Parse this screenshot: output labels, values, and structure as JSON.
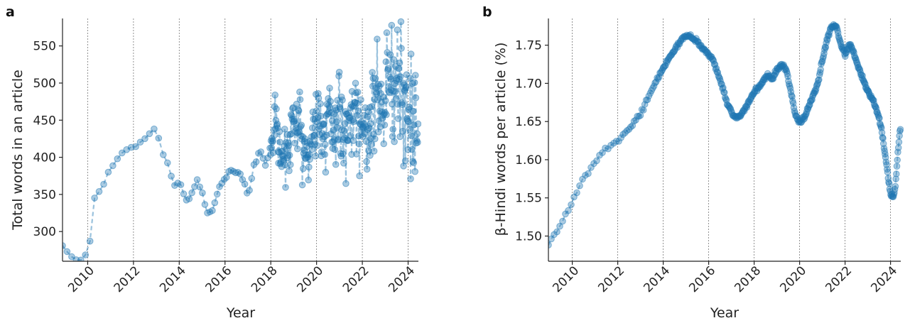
{
  "chart_data": [
    {
      "panel_label": "a",
      "type": "line",
      "marker": "circle",
      "line_style": "dashed",
      "color": "#1f77b4",
      "xlabel": "Year",
      "ylabel": "Total words in an article",
      "xlim": [
        2008.9,
        2024.45
      ],
      "ylim": [
        260,
        587
      ],
      "xticks": [
        2010,
        2012,
        2014,
        2016,
        2018,
        2020,
        2022,
        2024
      ],
      "xtick_labels": [
        "2010",
        "2012",
        "2014",
        "2016",
        "2018",
        "2020",
        "2022",
        "2024"
      ],
      "yticks": [
        300,
        350,
        400,
        450,
        500,
        550
      ],
      "ytick_labels": [
        "300",
        "350",
        "400",
        "450",
        "500",
        "550"
      ],
      "vertical_grid": true,
      "anchors": [
        [
          2008.9,
          281
        ],
        [
          2009.25,
          267
        ],
        [
          2009.5,
          262
        ],
        [
          2009.75,
          261
        ],
        [
          2009.85,
          265
        ],
        [
          2010.0,
          277
        ],
        [
          2010.15,
          292
        ],
        [
          2010.3,
          345
        ],
        [
          2010.6,
          358
        ],
        [
          2010.9,
          379
        ],
        [
          2011.2,
          393
        ],
        [
          2011.55,
          408
        ],
        [
          2012.0,
          415
        ],
        [
          2012.4,
          420
        ],
        [
          2012.7,
          431
        ],
        [
          2012.95,
          437
        ],
        [
          2013.15,
          418
        ],
        [
          2013.5,
          392
        ],
        [
          2013.8,
          362
        ],
        [
          2014.0,
          370
        ],
        [
          2014.3,
          340
        ],
        [
          2014.55,
          352
        ],
        [
          2014.8,
          372
        ],
        [
          2015.05,
          345
        ],
        [
          2015.3,
          320
        ],
        [
          2015.5,
          330
        ],
        [
          2015.75,
          360
        ],
        [
          2016.0,
          372
        ],
        [
          2016.3,
          385
        ],
        [
          2016.6,
          378
        ],
        [
          2016.85,
          365
        ],
        [
          2017.05,
          352
        ],
        [
          2017.3,
          395
        ],
        [
          2017.55,
          410
        ],
        [
          2017.8,
          385
        ],
        [
          2018.0,
          420
        ],
        [
          2018.2,
          450
        ],
        [
          2018.45,
          398
        ],
        [
          2018.7,
          410
        ],
        [
          2018.95,
          455
        ],
        [
          2019.2,
          440
        ],
        [
          2019.45,
          410
        ],
        [
          2019.7,
          420
        ],
        [
          2019.95,
          440
        ],
        [
          2020.1,
          472
        ],
        [
          2020.3,
          430
        ],
        [
          2020.55,
          455
        ],
        [
          2020.8,
          440
        ],
        [
          2021.0,
          452
        ],
        [
          2021.2,
          430
        ],
        [
          2021.45,
          455
        ],
        [
          2021.7,
          470
        ],
        [
          2021.9,
          440
        ],
        [
          2022.1,
          435
        ],
        [
          2022.3,
          450
        ],
        [
          2022.5,
          475
        ],
        [
          2022.75,
          470
        ],
        [
          2022.95,
          468
        ],
        [
          2023.1,
          510
        ],
        [
          2023.35,
          490
        ],
        [
          2023.6,
          500
        ],
        [
          2023.85,
          470
        ],
        [
          2024.1,
          480
        ],
        [
          2024.3,
          440
        ],
        [
          2024.45,
          430
        ]
      ],
      "noise": [
        [
          2008.9,
          0
        ],
        [
          2017.8,
          4
        ],
        [
          2018.0,
          15
        ],
        [
          2019.0,
          22
        ],
        [
          2020.0,
          25
        ],
        [
          2021.0,
          30
        ],
        [
          2022.0,
          32
        ],
        [
          2023.0,
          36
        ],
        [
          2024.0,
          42
        ],
        [
          2024.45,
          42
        ]
      ],
      "point_density": [
        [
          2008.9,
          5
        ],
        [
          2013.2,
          5
        ],
        [
          2014.0,
          8
        ],
        [
          2016.0,
          10
        ],
        [
          2017.9,
          10
        ],
        [
          2018.0,
          52
        ],
        [
          2024.45,
          52
        ]
      ],
      "seed": 7
    },
    {
      "panel_label": "b",
      "type": "line",
      "marker": "circle",
      "line_style": "dashed",
      "color": "#1f77b4",
      "xlabel": "Year",
      "ylabel": "β-Hindi words per article (%)",
      "xlim": [
        2008.95,
        2024.45
      ],
      "ylim": [
        1.467,
        1.785
      ],
      "xticks": [
        2010,
        2012,
        2014,
        2016,
        2018,
        2020,
        2022,
        2024
      ],
      "xtick_labels": [
        "2010",
        "2012",
        "2014",
        "2016",
        "2018",
        "2020",
        "2022",
        "2024"
      ],
      "yticks": [
        1.5,
        1.55,
        1.6,
        1.65,
        1.7,
        1.75
      ],
      "ytick_labels": [
        "1.50",
        "1.55",
        "1.60",
        "1.65",
        "1.70",
        "1.75"
      ],
      "vertical_grid": true,
      "anchors": [
        [
          2008.95,
          1.49
        ],
        [
          2009.5,
          1.515
        ],
        [
          2010.0,
          1.545
        ],
        [
          2010.5,
          1.575
        ],
        [
          2011.0,
          1.598
        ],
        [
          2011.5,
          1.615
        ],
        [
          2012.0,
          1.625
        ],
        [
          2012.5,
          1.64
        ],
        [
          2013.0,
          1.66
        ],
        [
          2013.5,
          1.692
        ],
        [
          2014.0,
          1.72
        ],
        [
          2014.5,
          1.745
        ],
        [
          2014.8,
          1.757
        ],
        [
          2015.0,
          1.762
        ],
        [
          2015.2,
          1.762
        ],
        [
          2015.5,
          1.755
        ],
        [
          2015.8,
          1.743
        ],
        [
          2016.2,
          1.73
        ],
        [
          2016.5,
          1.705
        ],
        [
          2016.8,
          1.675
        ],
        [
          2017.1,
          1.655
        ],
        [
          2017.4,
          1.658
        ],
        [
          2017.7,
          1.672
        ],
        [
          2018.0,
          1.688
        ],
        [
          2018.3,
          1.7
        ],
        [
          2018.6,
          1.712
        ],
        [
          2018.8,
          1.705
        ],
        [
          2019.0,
          1.718
        ],
        [
          2019.2,
          1.725
        ],
        [
          2019.4,
          1.718
        ],
        [
          2019.6,
          1.69
        ],
        [
          2019.8,
          1.66
        ],
        [
          2020.0,
          1.648
        ],
        [
          2020.2,
          1.655
        ],
        [
          2020.4,
          1.67
        ],
        [
          2020.6,
          1.685
        ],
        [
          2020.8,
          1.7
        ],
        [
          2021.0,
          1.73
        ],
        [
          2021.2,
          1.755
        ],
        [
          2021.4,
          1.775
        ],
        [
          2021.6,
          1.775
        ],
        [
          2021.8,
          1.752
        ],
        [
          2022.0,
          1.738
        ],
        [
          2022.2,
          1.752
        ],
        [
          2022.4,
          1.738
        ],
        [
          2022.6,
          1.72
        ],
        [
          2022.8,
          1.705
        ],
        [
          2023.0,
          1.69
        ],
        [
          2023.2,
          1.68
        ],
        [
          2023.4,
          1.665
        ],
        [
          2023.6,
          1.64
        ],
        [
          2023.75,
          1.61
        ],
        [
          2023.9,
          1.575
        ],
        [
          2024.0,
          1.555
        ],
        [
          2024.1,
          1.55
        ],
        [
          2024.2,
          1.56
        ],
        [
          2024.3,
          1.6
        ],
        [
          2024.42,
          1.64
        ]
      ],
      "noise": [
        [
          2008.95,
          0.0012
        ],
        [
          2024.45,
          0.0015
        ]
      ],
      "point_density": [
        [
          2008.95,
          8
        ],
        [
          2011.7,
          8
        ],
        [
          2012.0,
          10
        ],
        [
          2013.5,
          18
        ],
        [
          2014.0,
          30
        ],
        [
          2024.45,
          45
        ]
      ],
      "seed": 13
    }
  ]
}
